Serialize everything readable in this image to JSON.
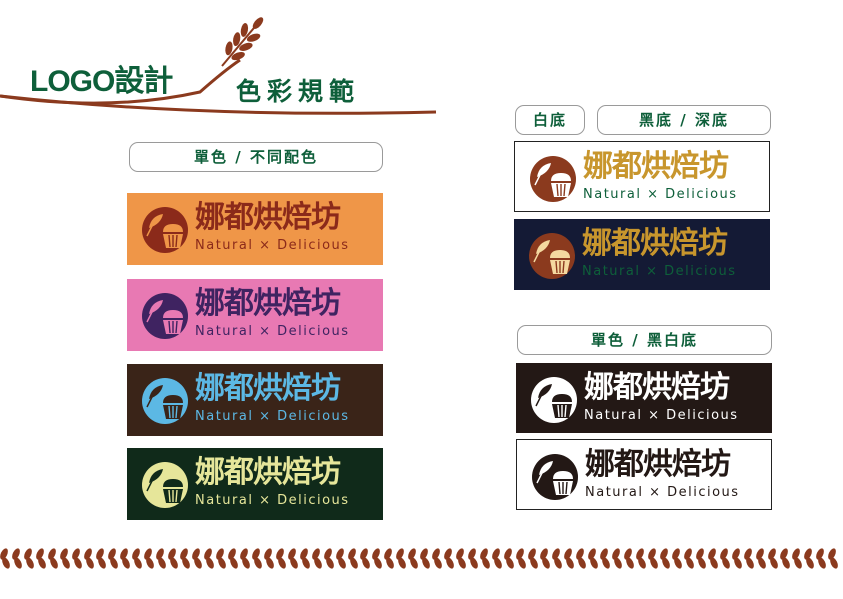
{
  "header": {
    "title": "LOGO設計",
    "subtitle": "色彩規範"
  },
  "labels": {
    "single_color_variants": "單色 / 不同配色",
    "white_bg": "白底",
    "dark_bg": "黑底 / 深底",
    "mono_bw": "單色 / 黑白底"
  },
  "logo": {
    "name": "娜都烘焙坊",
    "tagline": "Natural × Delicious"
  },
  "colors": {
    "brand_green": "#0e5f3a",
    "brand_brown": "#8b3a1e",
    "gold": "#c8962d"
  },
  "cards": [
    {
      "id": "orange",
      "bg": "#ef9648",
      "border": "none",
      "mark": "#8b2a1a",
      "mark_inner": "#ef9648",
      "name": "#8b2a1a",
      "tag": "#8b2a1a"
    },
    {
      "id": "pink",
      "bg": "#e879b3",
      "border": "none",
      "mark": "#3f2361",
      "mark_inner": "#e879b3",
      "name": "#3f2361",
      "tag": "#3f2361"
    },
    {
      "id": "dark-brown",
      "bg": "#3a2418",
      "border": "none",
      "mark": "#5cb8e4",
      "mark_inner": "#3a2418",
      "name": "#5cb8e4",
      "tag": "#5cb8e4"
    },
    {
      "id": "dark-green",
      "bg": "#102a1a",
      "border": "none",
      "mark": "#e6e69a",
      "mark_inner": "#102a1a",
      "name": "#e6e69a",
      "tag": "#e6e69a"
    },
    {
      "id": "white-bg",
      "bg": "#ffffff",
      "border": "1px solid #222",
      "mark": "#8b3a1e",
      "mark_inner": "#ffffff",
      "name": "#c8962d",
      "tag": "#0e5f3a"
    },
    {
      "id": "navy-bg",
      "bg": "#141a35",
      "border": "none",
      "mark": "#8b3a1e",
      "mark_inner": "#f4d9a0",
      "name": "#c8962d",
      "tag": "#0e5f3a"
    },
    {
      "id": "black-bg",
      "bg": "#231815",
      "border": "none",
      "mark": "#ffffff",
      "mark_inner": "#231815",
      "name": "#ffffff",
      "tag": "#ffffff"
    },
    {
      "id": "white-mono",
      "bg": "#ffffff",
      "border": "1px solid #222",
      "mark": "#231815",
      "mark_inner": "#ffffff",
      "name": "#231815",
      "tag": "#231815"
    }
  ]
}
